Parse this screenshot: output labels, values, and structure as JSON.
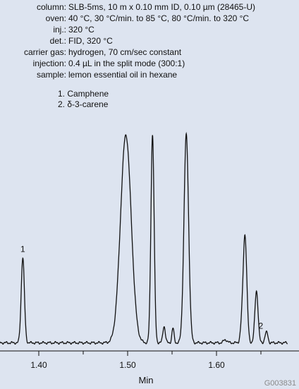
{
  "conditions": [
    {
      "label": "column:",
      "value": "SLB-5ms, 10 m x 0.10 mm ID, 0.10 µm (28465-U)"
    },
    {
      "label": "oven:",
      "value": "40 °C, 30 °C/min. to 85 °C, 80 °C/min. to 320 °C"
    },
    {
      "label": "inj.:",
      "value": "320 °C"
    },
    {
      "label": "det.:",
      "value": "FID, 320 °C"
    },
    {
      "label": "carrier gas:",
      "value": "hydrogen, 70 cm/sec constant"
    },
    {
      "label": "injection:",
      "value": "0.4 µL in the split mode (300:1)"
    },
    {
      "label": "sample:",
      "value": "lemon essential oil in hexane"
    }
  ],
  "peak_legend": [
    "1. Camphene",
    "2. δ-3-carene"
  ],
  "figure_id": "G003831",
  "chart_data": {
    "type": "line",
    "title": "",
    "xlabel": "Min",
    "ylabel": "",
    "xlim": [
      1.35,
      1.67
    ],
    "ylim": [
      0,
      100
    ],
    "x_ticks": [
      1.4,
      1.5,
      1.6
    ],
    "x_tick_labels": [
      "1.40",
      "1.50",
      "1.60"
    ],
    "baseline": 1.2,
    "peaks": [
      {
        "label": "1",
        "rt": 1.382,
        "height": 41,
        "width": 0.0018
      },
      {
        "label": "",
        "rt": 1.498,
        "height": 100,
        "width": 0.006
      },
      {
        "label": "",
        "rt": 1.528,
        "height": 100,
        "width": 0.0018
      },
      {
        "label": "",
        "rt": 1.541,
        "height": 8,
        "width": 0.0014
      },
      {
        "label": "",
        "rt": 1.551,
        "height": 7,
        "width": 0.0012
      },
      {
        "label": "",
        "rt": 1.566,
        "height": 100,
        "width": 0.0026
      },
      {
        "label": "",
        "rt": 1.61,
        "height": 1.5,
        "width": 0.002
      },
      {
        "label": "",
        "rt": 1.628,
        "height": 5,
        "width": 0.0015
      },
      {
        "label": "",
        "rt": 1.632,
        "height": 52,
        "width": 0.0021
      },
      {
        "label": "",
        "rt": 1.645,
        "height": 25,
        "width": 0.0018
      },
      {
        "label": "",
        "rt": 1.655,
        "height": 3,
        "width": 0.0012
      },
      {
        "label": "2",
        "rt": 1.657,
        "height": 4,
        "width": 0.0012
      }
    ]
  }
}
